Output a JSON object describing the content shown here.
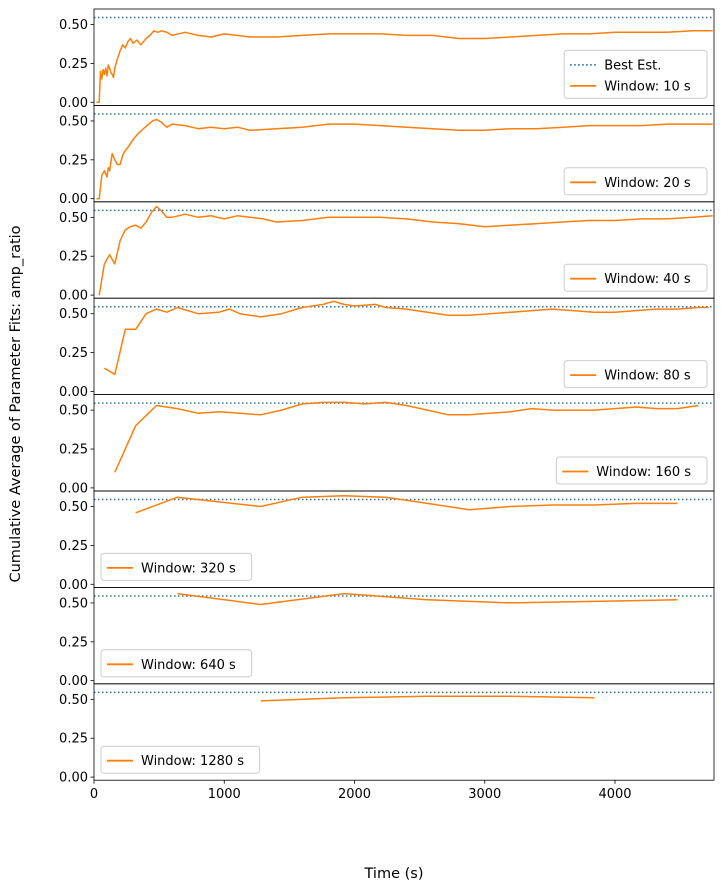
{
  "figure": {
    "ylabel": "Cumulative Average of Parameter Fits: amp_ratio",
    "xlabel": "Time (s)",
    "colors": {
      "best_est": "#1f77b4",
      "window": "#ff7f0e"
    }
  },
  "chart_data": {
    "type": "line",
    "xlim": [
      0,
      4760
    ],
    "ylim": [
      -0.02,
      0.6
    ],
    "xticks": [
      0,
      1000,
      2000,
      3000,
      4000
    ],
    "yticks": [
      0.0,
      0.25,
      0.5
    ],
    "xtick_labels": [
      "0",
      "1000",
      "2000",
      "3000",
      "4000"
    ],
    "ytick_labels": [
      "0.00",
      "0.25",
      "0.50"
    ],
    "best_estimate": 0.545,
    "best_estimate_label": "Best Est.",
    "panels": [
      {
        "name": "Window: 10 s",
        "legend": "lower-right",
        "show_best_in_legend": true,
        "x": [
          20,
          40,
          50,
          60,
          70,
          80,
          90,
          100,
          110,
          120,
          130,
          140,
          150,
          160,
          180,
          200,
          220,
          240,
          260,
          280,
          300,
          330,
          360,
          400,
          430,
          460,
          490,
          520,
          560,
          600,
          700,
          800,
          900,
          1000,
          1200,
          1400,
          1600,
          1800,
          2000,
          2200,
          2400,
          2600,
          2800,
          3000,
          3200,
          3400,
          3600,
          3800,
          4000,
          4200,
          4400,
          4600,
          4750
        ],
        "y": [
          0.0,
          0.0,
          0.2,
          0.15,
          0.21,
          0.18,
          0.22,
          0.17,
          0.24,
          0.22,
          0.19,
          0.18,
          0.16,
          0.22,
          0.28,
          0.33,
          0.37,
          0.35,
          0.39,
          0.41,
          0.38,
          0.4,
          0.37,
          0.41,
          0.43,
          0.46,
          0.45,
          0.46,
          0.45,
          0.43,
          0.45,
          0.43,
          0.42,
          0.44,
          0.42,
          0.42,
          0.43,
          0.44,
          0.44,
          0.44,
          0.43,
          0.43,
          0.41,
          0.41,
          0.42,
          0.43,
          0.44,
          0.44,
          0.45,
          0.45,
          0.45,
          0.46,
          0.46
        ]
      },
      {
        "name": "Window: 20 s",
        "legend": "lower-right",
        "show_best_in_legend": false,
        "x": [
          20,
          40,
          60,
          80,
          100,
          110,
          120,
          140,
          160,
          180,
          200,
          220,
          240,
          260,
          300,
          340,
          380,
          420,
          450,
          480,
          520,
          560,
          600,
          700,
          800,
          900,
          1000,
          1100,
          1200,
          1400,
          1600,
          1800,
          2000,
          2200,
          2400,
          2600,
          2800,
          3000,
          3200,
          3400,
          3600,
          3800,
          4000,
          4200,
          4400,
          4600,
          4750
        ],
        "y": [
          0.0,
          0.0,
          0.15,
          0.18,
          0.14,
          0.2,
          0.18,
          0.29,
          0.25,
          0.22,
          0.22,
          0.28,
          0.31,
          0.33,
          0.38,
          0.42,
          0.45,
          0.48,
          0.5,
          0.51,
          0.49,
          0.46,
          0.48,
          0.47,
          0.45,
          0.46,
          0.45,
          0.46,
          0.44,
          0.45,
          0.46,
          0.48,
          0.48,
          0.47,
          0.46,
          0.45,
          0.44,
          0.44,
          0.45,
          0.45,
          0.46,
          0.47,
          0.47,
          0.47,
          0.48,
          0.48,
          0.48
        ]
      },
      {
        "name": "Window: 40 s",
        "legend": "lower-right",
        "show_best_in_legend": false,
        "x": [
          40,
          80,
          120,
          160,
          200,
          240,
          280,
          320,
          360,
          400,
          440,
          480,
          520,
          560,
          600,
          700,
          800,
          900,
          1000,
          1100,
          1200,
          1300,
          1400,
          1600,
          1800,
          2000,
          2200,
          2400,
          2600,
          2800,
          3000,
          3200,
          3400,
          3600,
          3800,
          4000,
          4200,
          4400,
          4600,
          4750
        ],
        "y": [
          0.0,
          0.2,
          0.26,
          0.2,
          0.35,
          0.42,
          0.44,
          0.45,
          0.43,
          0.47,
          0.53,
          0.57,
          0.54,
          0.5,
          0.5,
          0.52,
          0.5,
          0.51,
          0.49,
          0.51,
          0.5,
          0.49,
          0.47,
          0.48,
          0.5,
          0.5,
          0.5,
          0.49,
          0.47,
          0.46,
          0.44,
          0.45,
          0.46,
          0.47,
          0.48,
          0.48,
          0.49,
          0.49,
          0.5,
          0.51
        ]
      },
      {
        "name": "Window: 80 s",
        "legend": "lower-right",
        "show_best_in_legend": false,
        "x": [
          80,
          160,
          240,
          320,
          400,
          480,
          560,
          640,
          720,
          800,
          960,
          1040,
          1120,
          1280,
          1440,
          1600,
          1760,
          1840,
          1920,
          2000,
          2160,
          2240,
          2400,
          2560,
          2720,
          2880,
          3040,
          3200,
          3360,
          3520,
          3680,
          3840,
          4000,
          4160,
          4320,
          4480,
          4640,
          4720
        ],
        "y": [
          0.15,
          0.11,
          0.4,
          0.4,
          0.5,
          0.53,
          0.51,
          0.54,
          0.52,
          0.5,
          0.51,
          0.53,
          0.5,
          0.48,
          0.5,
          0.54,
          0.56,
          0.58,
          0.56,
          0.55,
          0.56,
          0.54,
          0.53,
          0.51,
          0.49,
          0.49,
          0.5,
          0.51,
          0.52,
          0.53,
          0.52,
          0.51,
          0.51,
          0.52,
          0.53,
          0.53,
          0.54,
          0.54
        ]
      },
      {
        "name": "Window: 160 s",
        "legend": "lower-right",
        "show_best_in_legend": false,
        "x": [
          160,
          320,
          480,
          640,
          800,
          960,
          1120,
          1280,
          1440,
          1600,
          1760,
          1920,
          2080,
          2240,
          2400,
          2560,
          2720,
          2880,
          3040,
          3200,
          3360,
          3520,
          3680,
          3840,
          4000,
          4160,
          4320,
          4480,
          4640
        ],
        "y": [
          0.1,
          0.4,
          0.53,
          0.51,
          0.48,
          0.49,
          0.48,
          0.47,
          0.5,
          0.54,
          0.55,
          0.55,
          0.54,
          0.55,
          0.53,
          0.5,
          0.47,
          0.47,
          0.48,
          0.49,
          0.51,
          0.5,
          0.5,
          0.5,
          0.51,
          0.52,
          0.51,
          0.51,
          0.53
        ]
      },
      {
        "name": "Window: 320 s",
        "legend": "lower-left",
        "show_best_in_legend": false,
        "x": [
          320,
          640,
          960,
          1280,
          1600,
          1920,
          2240,
          2560,
          2880,
          3200,
          3520,
          3840,
          4160,
          4480
        ],
        "y": [
          0.46,
          0.56,
          0.53,
          0.5,
          0.56,
          0.57,
          0.56,
          0.52,
          0.48,
          0.5,
          0.51,
          0.51,
          0.52,
          0.52
        ]
      },
      {
        "name": "Window: 640 s",
        "legend": "lower-left",
        "show_best_in_legend": false,
        "x": [
          640,
          1280,
          1920,
          2560,
          3200,
          3840,
          4480
        ],
        "y": [
          0.56,
          0.49,
          0.56,
          0.52,
          0.5,
          0.51,
          0.52
        ]
      },
      {
        "name": "Window: 1280 s",
        "legend": "lower-left",
        "show_best_in_legend": false,
        "x": [
          1280,
          1920,
          2560,
          3200,
          3840
        ],
        "y": [
          0.49,
          0.51,
          0.52,
          0.52,
          0.51
        ]
      }
    ]
  }
}
